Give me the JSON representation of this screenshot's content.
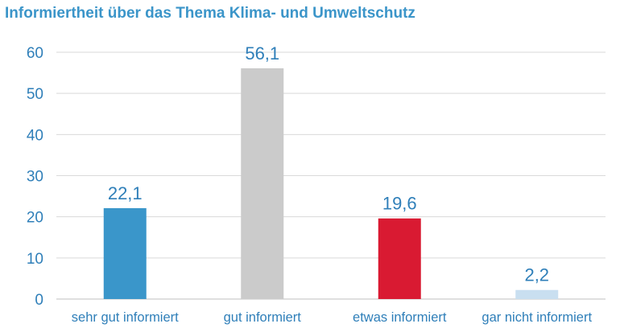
{
  "chart_data": {
    "type": "bar",
    "title": "Informiertheit über das Thema Klima- und Umweltschutz",
    "categories": [
      "sehr gut informiert",
      "gut informiert",
      "etwas informiert",
      "gar nicht informiert"
    ],
    "values": [
      22.1,
      56.1,
      19.6,
      2.2
    ],
    "value_labels": [
      "22,1",
      "56,1",
      "19,6",
      "2,2"
    ],
    "colors": [
      "#3a96ca",
      "#cbcbcb",
      "#d91a32",
      "#c9dff0"
    ],
    "ylim": [
      0,
      60
    ],
    "yticks": [
      0,
      10,
      20,
      30,
      40,
      50,
      60
    ],
    "xlabel": "",
    "ylabel": "",
    "grid": true,
    "legend": "none"
  }
}
